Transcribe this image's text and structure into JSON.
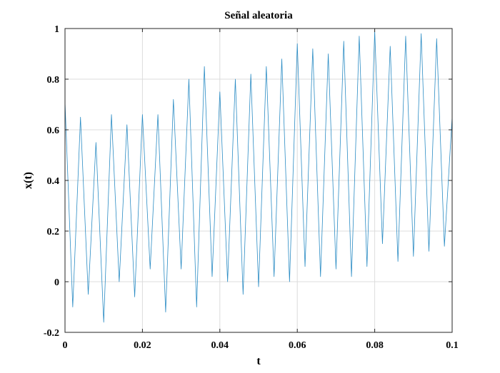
{
  "chart_data": {
    "type": "line",
    "title": "Señal aleatoria",
    "xlabel": "t",
    "ylabel": "x(t)",
    "xlim": [
      0,
      0.1
    ],
    "ylim": [
      -0.2,
      1
    ],
    "xticks": [
      0,
      0.02,
      0.04,
      0.06,
      0.08,
      0.1
    ],
    "xtick_labels": [
      "0",
      "0.02",
      "0.04",
      "0.06",
      "0.08",
      "0.1"
    ],
    "yticks": [
      -0.2,
      0,
      0.2,
      0.4,
      0.6,
      0.8,
      1
    ],
    "ytick_labels": [
      "-0.2",
      "0",
      "0.2",
      "0.4",
      "0.6",
      "0.8",
      "1"
    ],
    "grid": true,
    "series_color": "#2b8cc4",
    "series": [
      {
        "x": [
          0,
          0.002,
          0.004,
          0.006,
          0.008,
          0.01,
          0.012,
          0.014,
          0.016,
          0.018,
          0.02,
          0.022,
          0.024,
          0.026,
          0.028,
          0.03,
          0.032,
          0.034,
          0.036,
          0.038,
          0.04,
          0.042,
          0.044,
          0.046,
          0.048,
          0.05,
          0.052,
          0.054,
          0.056,
          0.058,
          0.06,
          0.062,
          0.064,
          0.066,
          0.068,
          0.07,
          0.072,
          0.074,
          0.076,
          0.078,
          0.08,
          0.082,
          0.084,
          0.086,
          0.088,
          0.09,
          0.092,
          0.094,
          0.096,
          0.098,
          0.1
        ],
        "values": [
          0.71,
          -0.1,
          0.65,
          -0.05,
          0.55,
          -0.16,
          0.66,
          0.0,
          0.62,
          -0.06,
          0.66,
          0.05,
          0.66,
          -0.12,
          0.72,
          0.05,
          0.8,
          -0.1,
          0.85,
          0.02,
          0.75,
          0.0,
          0.8,
          -0.05,
          0.82,
          -0.02,
          0.85,
          0.02,
          0.88,
          0.0,
          0.94,
          0.06,
          0.92,
          0.02,
          0.9,
          0.05,
          0.95,
          0.02,
          0.97,
          0.06,
          0.99,
          0.15,
          0.93,
          0.08,
          0.97,
          0.1,
          0.98,
          0.12,
          0.96,
          0.14,
          0.65
        ]
      }
    ]
  }
}
